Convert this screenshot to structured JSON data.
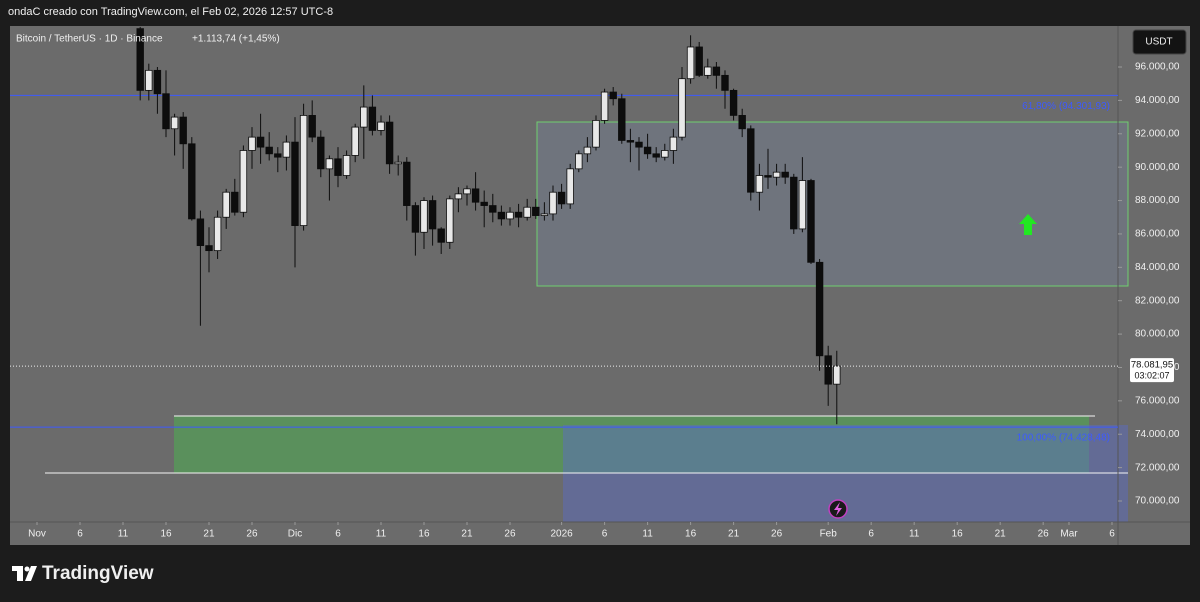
{
  "header": "ondaC creado con TradingView.com, el Feb 02, 2026 12:57 UTC-8",
  "footer": "TradingView",
  "chart_data": {
    "type": "candlestick",
    "symbol": "Bitcoin / TetherUS · 1D · Binance",
    "change": "+1.113,74 (+1,45%)",
    "currency": "USDT",
    "x": [
      12,
      13,
      14,
      15,
      16,
      17,
      18,
      19,
      20,
      21,
      22,
      23,
      24,
      25,
      26,
      27,
      28,
      29,
      30,
      31,
      32,
      33,
      34,
      35,
      36,
      37,
      38,
      39,
      40,
      41,
      42,
      43,
      44,
      45,
      46,
      47,
      48,
      49,
      50,
      51,
      52,
      53,
      54,
      55,
      56,
      57,
      58,
      59,
      60,
      61,
      62,
      63,
      64,
      65,
      66,
      67,
      68,
      69,
      70,
      71,
      72,
      73,
      74,
      75,
      76,
      77,
      78,
      79,
      80,
      81,
      82,
      83,
      84,
      85,
      86,
      87,
      88,
      89,
      90,
      91,
      92,
      93
    ],
    "open": [
      98300,
      94600,
      95800,
      94400,
      92300,
      93000,
      91400,
      86900,
      85300,
      85000,
      87000,
      88500,
      87300,
      91000,
      91800,
      91200,
      90800,
      90600,
      91500,
      86500,
      93100,
      91800,
      89900,
      90500,
      89500,
      90700,
      92400,
      93600,
      92200,
      92700,
      90200,
      90300,
      87700,
      86100,
      88000,
      86300,
      85500,
      88100,
      88400,
      88700,
      87900,
      87700,
      87300,
      86900,
      87300,
      87000,
      87600,
      87100,
      87200,
      88500,
      87800,
      89900,
      90800,
      91200,
      92800,
      94500,
      94100,
      91600,
      91500,
      91200,
      90800,
      90600,
      91000,
      91800,
      95300,
      97200,
      95500,
      96000,
      95500,
      94600,
      93100,
      92300,
      88500,
      89500,
      89400,
      89700,
      89400,
      86300,
      89200,
      84300,
      78700,
      77000
    ],
    "high": [
      98400,
      96200,
      96000,
      95800,
      93200,
      93300,
      91800,
      87400,
      86400,
      87400,
      88700,
      89300,
      91300,
      92400,
      93200,
      92100,
      91200,
      91900,
      93000,
      93800,
      94000,
      92200,
      90700,
      91200,
      91000,
      92600,
      94900,
      94300,
      93100,
      93100,
      90700,
      90600,
      87900,
      88200,
      88300,
      86400,
      88300,
      88800,
      88900,
      89700,
      88600,
      88400,
      87700,
      87600,
      87800,
      88100,
      88100,
      87900,
      88900,
      89000,
      90200,
      91000,
      91800,
      93100,
      94700,
      94800,
      94400,
      92300,
      91800,
      92000,
      91200,
      91400,
      92300,
      96000,
      97900,
      97500,
      96500,
      96300,
      95800,
      94700,
      93500,
      92500,
      90200,
      91100,
      90200,
      90200,
      89600,
      90600,
      89300,
      84500,
      79300,
      79000
    ],
    "low": [
      94000,
      94000,
      93200,
      91800,
      90700,
      89900,
      86800,
      80500,
      83700,
      84500,
      86300,
      87100,
      87000,
      89900,
      90200,
      90400,
      89700,
      89800,
      84000,
      86200,
      91500,
      89400,
      88000,
      88800,
      89300,
      90300,
      90500,
      91900,
      91900,
      89600,
      89500,
      86800,
      84700,
      85100,
      85300,
      84800,
      85100,
      87300,
      87700,
      87400,
      86400,
      86700,
      86500,
      86500,
      86400,
      86800,
      86900,
      86800,
      86800,
      87500,
      87500,
      89700,
      90300,
      91000,
      92600,
      93700,
      91400,
      90300,
      89800,
      90500,
      90300,
      90400,
      90200,
      91600,
      95000,
      95400,
      95300,
      94700,
      93500,
      92800,
      91800,
      88000,
      87400,
      88700,
      88900,
      89000,
      86000,
      86100,
      84200,
      77800,
      75700,
      74600
    ],
    "close": [
      94600,
      95800,
      94400,
      92300,
      93000,
      91400,
      86900,
      85300,
      85000,
      87000,
      88500,
      87300,
      91000,
      91800,
      91200,
      90800,
      90600,
      91500,
      86500,
      93100,
      91800,
      89900,
      90500,
      89500,
      90700,
      92400,
      93600,
      92200,
      92700,
      90200,
      90300,
      87700,
      86100,
      88000,
      86300,
      85500,
      88100,
      88400,
      88700,
      87900,
      87700,
      87300,
      86900,
      87300,
      87000,
      87600,
      87100,
      87200,
      88500,
      87800,
      89900,
      90800,
      91200,
      92800,
      94500,
      94100,
      91600,
      91500,
      91200,
      90800,
      90600,
      91000,
      91800,
      95300,
      97200,
      95500,
      96000,
      95500,
      94600,
      93100,
      92300,
      88500,
      89500,
      89400,
      89700,
      89400,
      86300,
      89200,
      84300,
      78700,
      77000,
      78081.95
    ],
    "last_price_label": "78.081,95",
    "countdown": "03:02:07",
    "up_color": "#e8e8e8",
    "down_color": "#0d0d0d",
    "xlim": [
      -3.14,
      125.7
    ],
    "xticks": [
      {
        "value": 0,
        "label": "Nov"
      },
      {
        "value": 5,
        "label": "6"
      },
      {
        "value": 10,
        "label": "11"
      },
      {
        "value": 15,
        "label": "16"
      },
      {
        "value": 20,
        "label": "21"
      },
      {
        "value": 25,
        "label": "26"
      },
      {
        "value": 30,
        "label": "Dic"
      },
      {
        "value": 35,
        "label": "6"
      },
      {
        "value": 40,
        "label": "11"
      },
      {
        "value": 45,
        "label": "16"
      },
      {
        "value": 50,
        "label": "21"
      },
      {
        "value": 55,
        "label": "26"
      },
      {
        "value": 61,
        "label": "2026"
      },
      {
        "value": 66,
        "label": "6"
      },
      {
        "value": 71,
        "label": "11"
      },
      {
        "value": 76,
        "label": "16"
      },
      {
        "value": 81,
        "label": "21"
      },
      {
        "value": 86,
        "label": "26"
      },
      {
        "value": 92,
        "label": "Feb"
      },
      {
        "value": 97,
        "label": "6"
      },
      {
        "value": 102,
        "label": "11"
      },
      {
        "value": 107,
        "label": "16"
      },
      {
        "value": 112,
        "label": "21"
      },
      {
        "value": 117,
        "label": "26"
      },
      {
        "value": 120,
        "label": "Mar"
      },
      {
        "value": 125,
        "label": "6"
      }
    ],
    "ylim": [
      68742,
      98457
    ],
    "yticks": [
      {
        "value": 70000,
        "label": "70.000,00"
      },
      {
        "value": 72000,
        "label": "72.000,00"
      },
      {
        "value": 74000,
        "label": "74.000,00"
      },
      {
        "value": 76000,
        "label": "76.000,00"
      },
      {
        "value": 78000,
        "label": "78.000,00"
      },
      {
        "value": 80000,
        "label": "80.000,00"
      },
      {
        "value": 82000,
        "label": "82.000,00"
      },
      {
        "value": 84000,
        "label": "84.000,00"
      },
      {
        "value": 86000,
        "label": "86.000,00"
      },
      {
        "value": 88000,
        "label": "88.000,00"
      },
      {
        "value": 90000,
        "label": "90.000,00"
      },
      {
        "value": 92000,
        "label": "92.000,00"
      },
      {
        "value": 94000,
        "label": "94.000,00"
      },
      {
        "value": 96000,
        "label": "96.000,00"
      }
    ],
    "levels": [
      {
        "value": 94301.93,
        "label": "61,80% (94.301,93)",
        "color": "#3d5afe"
      },
      {
        "value": 74428.48,
        "label": "100,00% (74.428,48)",
        "color": "#3d5afe"
      }
    ],
    "grid": false
  }
}
